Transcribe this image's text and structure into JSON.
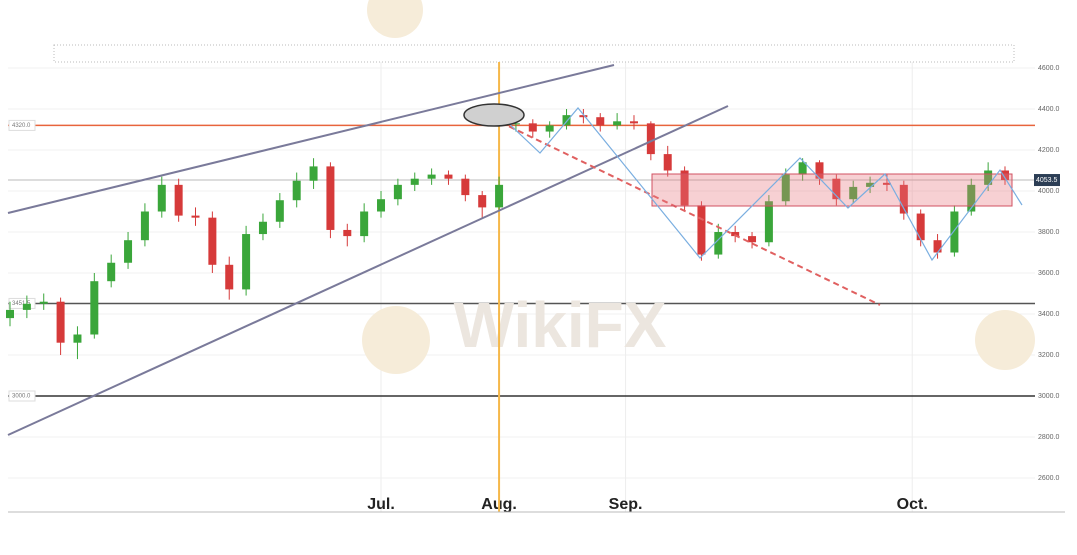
{
  "chart_data": {
    "type": "candlestick",
    "watermark": "WikiFX",
    "candles": [
      [
        3380,
        3460,
        3340,
        3420
      ],
      [
        3420,
        3490,
        3380,
        3450
      ],
      [
        3450,
        3500,
        3420,
        3460
      ],
      [
        3460,
        3480,
        3200,
        3260
      ],
      [
        3260,
        3340,
        3180,
        3300
      ],
      [
        3300,
        3600,
        3280,
        3560
      ],
      [
        3560,
        3690,
        3530,
        3650
      ],
      [
        3650,
        3800,
        3620,
        3760
      ],
      [
        3760,
        3940,
        3730,
        3900
      ],
      [
        3900,
        4070,
        3870,
        4030
      ],
      [
        4030,
        4060,
        3850,
        3880
      ],
      [
        3880,
        3920,
        3830,
        3870
      ],
      [
        3870,
        3900,
        3600,
        3640
      ],
      [
        3640,
        3680,
        3470,
        3520
      ],
      [
        3520,
        3830,
        3490,
        3790
      ],
      [
        3790,
        3890,
        3760,
        3850
      ],
      [
        3850,
        3990,
        3820,
        3955
      ],
      [
        3955,
        4090,
        3920,
        4050
      ],
      [
        4050,
        4160,
        4010,
        4120
      ],
      [
        4120,
        4140,
        3770,
        3810
      ],
      [
        3810,
        3840,
        3730,
        3780
      ],
      [
        3780,
        3940,
        3750,
        3900
      ],
      [
        3900,
        4000,
        3870,
        3960
      ],
      [
        3960,
        4060,
        3930,
        4030
      ],
      [
        4030,
        4090,
        4000,
        4060
      ],
      [
        4060,
        4110,
        4030,
        4080
      ],
      [
        4080,
        4100,
        4030,
        4060
      ],
      [
        4060,
        4080,
        3950,
        3980
      ],
      [
        3980,
        4000,
        3870,
        3920
      ],
      [
        3920,
        4070,
        3900,
        4030
      ],
      [
        4330,
        4360,
        4290,
        4330
      ],
      [
        4330,
        4350,
        4260,
        4290
      ],
      [
        4290,
        4340,
        4260,
        4320
      ],
      [
        4320,
        4400,
        4300,
        4370
      ],
      [
        4370,
        4400,
        4330,
        4360
      ],
      [
        4360,
        4380,
        4290,
        4320
      ],
      [
        4320,
        4380,
        4300,
        4340
      ],
      [
        4340,
        4370,
        4300,
        4330
      ],
      [
        4330,
        4340,
        4150,
        4180
      ],
      [
        4180,
        4220,
        4070,
        4100
      ],
      [
        4100,
        4120,
        3900,
        3930
      ],
      [
        3930,
        3950,
        3660,
        3690
      ],
      [
        3690,
        3840,
        3670,
        3800
      ],
      [
        3800,
        3830,
        3750,
        3780
      ],
      [
        3780,
        3800,
        3720,
        3750
      ],
      [
        3750,
        3980,
        3730,
        3950
      ],
      [
        3950,
        4110,
        3930,
        4080
      ],
      [
        4080,
        4160,
        4050,
        4140
      ],
      [
        4140,
        4150,
        4030,
        4060
      ],
      [
        4060,
        4080,
        3930,
        3960
      ],
      [
        3960,
        4050,
        3940,
        4020
      ],
      [
        4020,
        4070,
        3990,
        4040
      ],
      [
        4040,
        4080,
        4000,
        4030
      ],
      [
        4030,
        4050,
        3860,
        3890
      ],
      [
        3890,
        3910,
        3730,
        3760
      ],
      [
        3760,
        3790,
        3670,
        3700
      ],
      [
        3700,
        3930,
        3680,
        3900
      ],
      [
        3900,
        4060,
        3880,
        4030
      ],
      [
        4030,
        4140,
        4000,
        4100
      ],
      [
        4100,
        4120,
        4030,
        4053.5
      ]
    ],
    "up_color": "#3aa63a",
    "down_color": "#d63a3a",
    "xlim": [
      0,
      59
    ],
    "xticks": [
      {
        "value": 22,
        "label": "Jul."
      },
      {
        "value": 29,
        "label": "Aug."
      },
      {
        "value": 36.5,
        "label": "Sep."
      },
      {
        "value": 53.5,
        "label": "Oct."
      }
    ],
    "vlines": [
      {
        "value": 29,
        "color": "#f5b84a"
      }
    ],
    "ylim": [
      2600,
      4600
    ],
    "yticks": [
      {
        "value": 2600,
        "label": "2600.0"
      },
      {
        "value": 2800,
        "label": "2800.0"
      },
      {
        "value": 3000,
        "label": "3000.0"
      },
      {
        "value": 3200,
        "label": "3200.0"
      },
      {
        "value": 3400,
        "label": "3400.0"
      },
      {
        "value": 3600,
        "label": "3600.0"
      },
      {
        "value": 3800,
        "label": "3800.0"
      },
      {
        "value": 4000,
        "label": "4000.0"
      },
      {
        "value": 4200,
        "label": "4200.0"
      },
      {
        "value": 4400,
        "label": "4400.0"
      },
      {
        "value": 4600,
        "label": "4600.0"
      }
    ],
    "hlines": [
      {
        "value": 4320,
        "label": "4320.0",
        "color": "#e8643c"
      },
      {
        "value": 3451.5,
        "label": "3451.5",
        "color": "#555555"
      },
      {
        "value": 3000,
        "label": "3000.0",
        "color": "#333333"
      }
    ],
    "last_price": {
      "value": 4053.5,
      "label": "4053.5",
      "color": "#2c3e55"
    },
    "grid": true
  }
}
